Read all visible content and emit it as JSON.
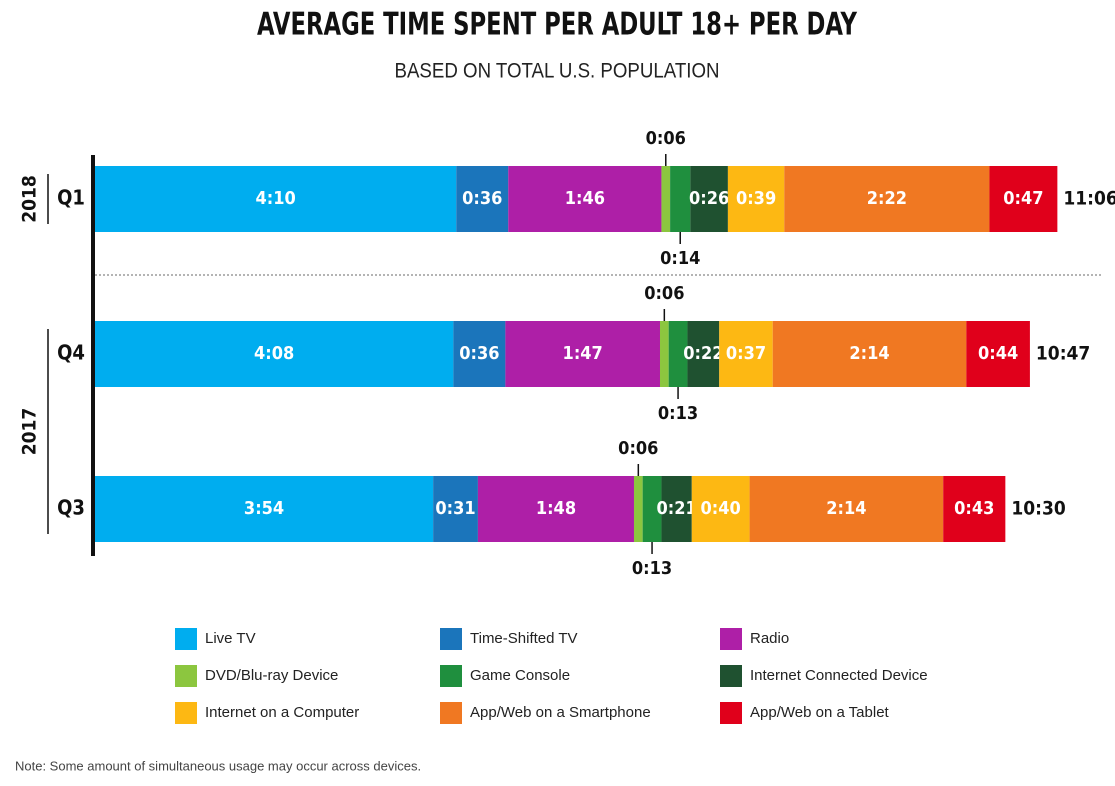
{
  "chart_data": {
    "type": "stacked-bar",
    "title": "AVERAGE TIME SPENT PER ADULT 18+ PER DAY",
    "subtitle": "BASED ON TOTAL U.S. POPULATION",
    "groups": [
      {
        "name": "2018",
        "categories": [
          "Q1"
        ]
      },
      {
        "name": "2017",
        "categories": [
          "Q4",
          "Q3"
        ]
      }
    ],
    "series": [
      {
        "name": "Live TV",
        "color": "#00adef",
        "values": [
          250,
          248,
          234
        ],
        "value_labels": [
          "4:10",
          "4:08",
          "3:54"
        ]
      },
      {
        "name": "Time-Shifted TV",
        "color": "#1b75bb",
        "values": [
          36,
          36,
          31
        ],
        "value_labels": [
          "0:36",
          "0:36",
          "0:31"
        ]
      },
      {
        "name": "Radio",
        "color": "#ae1fa7",
        "values": [
          106,
          107,
          108
        ],
        "value_labels": [
          "1:46",
          "1:47",
          "1:48"
        ]
      },
      {
        "name": "DVD/Blu-ray Device",
        "color": "#8cc63f",
        "values": [
          6,
          6,
          6
        ],
        "value_labels": [
          "0:06",
          "0:06",
          "0:06"
        ]
      },
      {
        "name": "Game Console",
        "color": "#1f8f3e",
        "values": [
          14,
          13,
          13
        ],
        "value_labels": [
          "0:14",
          "0:13",
          "0:13"
        ]
      },
      {
        "name": "Internet Connected Device",
        "color": "#1f5130",
        "values": [
          26,
          22,
          21
        ],
        "value_labels": [
          "0:26",
          "0:22",
          "0:21"
        ]
      },
      {
        "name": "Internet on a Computer",
        "color": "#fdb813",
        "values": [
          39,
          37,
          40
        ],
        "value_labels": [
          "0:39",
          "0:37",
          "0:40"
        ]
      },
      {
        "name": "App/Web on a Smartphone",
        "color": "#f07822",
        "values": [
          142,
          134,
          134
        ],
        "value_labels": [
          "2:22",
          "2:14",
          "2:14"
        ]
      },
      {
        "name": "App/Web on a Tablet",
        "color": "#e0001b",
        "values": [
          47,
          44,
          43
        ],
        "value_labels": [
          "0:47",
          "0:44",
          "0:43"
        ]
      }
    ],
    "totals": [
      666,
      647,
      630
    ],
    "total_labels": [
      "11:06",
      "10:47",
      "10:30"
    ],
    "note": "Note:  Some amount of simultaneous usage may occur across devices."
  }
}
